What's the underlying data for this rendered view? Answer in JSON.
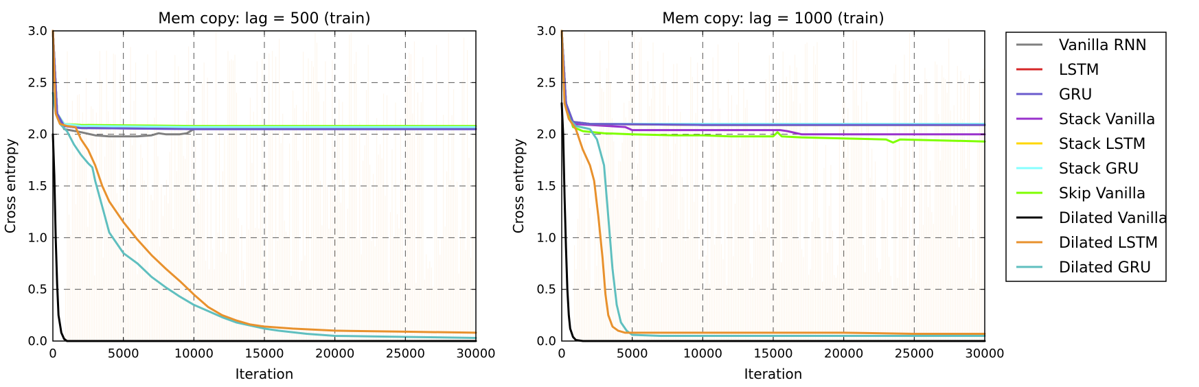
{
  "chart_data": [
    {
      "type": "line",
      "title": "Mem copy: lag = 500 (train)",
      "xlabel": "Iteration",
      "ylabel": "Cross entropy",
      "xlim": [
        0,
        30000
      ],
      "ylim": [
        0.0,
        3.0
      ],
      "xticks": [
        0,
        5000,
        10000,
        15000,
        20000,
        25000,
        30000
      ],
      "yticks": [
        0.0,
        0.5,
        1.0,
        1.5,
        2.0,
        2.5,
        3.0
      ],
      "xtick_labels": [
        "0",
        "5000",
        "10000",
        "15000",
        "20000",
        "25000",
        "30000"
      ],
      "ytick_labels": [
        "0.0",
        "0.5",
        "1.0",
        "1.5",
        "2.0",
        "2.5",
        "3.0"
      ],
      "grid": true,
      "series": [
        {
          "name": "Vanilla RNN",
          "x": [
            0,
            300,
            800,
            2000,
            3000,
            4000,
            5000,
            6000,
            7000,
            7500,
            8000,
            9000,
            9500,
            10000,
            10500,
            11000,
            12000,
            15000,
            20000,
            25000,
            30000
          ],
          "y": [
            3.0,
            2.2,
            2.05,
            2.02,
            1.99,
            1.98,
            1.98,
            1.98,
            1.99,
            2.01,
            2.0,
            2.0,
            2.01,
            2.05,
            2.05,
            2.05,
            2.05,
            2.05,
            2.05,
            2.05,
            2.05
          ]
        },
        {
          "name": "LSTM",
          "x": [
            0,
            300,
            800,
            2000,
            10000,
            20000,
            30000
          ],
          "y": [
            3.0,
            2.2,
            2.1,
            2.07,
            2.07,
            2.07,
            2.07
          ]
        },
        {
          "name": "GRU",
          "x": [
            0,
            300,
            800,
            2000,
            10000,
            20000,
            30000
          ],
          "y": [
            3.0,
            2.2,
            2.08,
            2.06,
            2.05,
            2.05,
            2.05
          ]
        },
        {
          "name": "Stack Vanilla",
          "x": [
            0,
            300,
            800,
            2000,
            10000,
            20000,
            30000
          ],
          "y": [
            3.0,
            2.2,
            2.08,
            2.06,
            2.05,
            2.05,
            2.05
          ]
        },
        {
          "name": "Stack LSTM",
          "x": [
            0,
            300,
            800,
            2000,
            10000,
            20000,
            30000
          ],
          "y": [
            3.0,
            2.2,
            2.1,
            2.08,
            2.07,
            2.07,
            2.07
          ]
        },
        {
          "name": "Stack GRU",
          "x": [
            0,
            300,
            800,
            2000,
            10000,
            20000,
            30000
          ],
          "y": [
            3.0,
            2.2,
            2.1,
            2.08,
            2.07,
            2.07,
            2.07
          ]
        },
        {
          "name": "Skip Vanilla",
          "x": [
            0,
            300,
            800,
            2000,
            10000,
            20000,
            30000
          ],
          "y": [
            3.0,
            2.2,
            2.1,
            2.09,
            2.08,
            2.08,
            2.08
          ]
        },
        {
          "name": "Dilated Vanilla",
          "x": [
            0,
            100,
            200,
            300,
            400,
            600,
            800,
            1000,
            1500,
            30000
          ],
          "y": [
            2.0,
            1.6,
            1.0,
            0.55,
            0.25,
            0.08,
            0.02,
            0.0,
            0.0,
            0.0
          ]
        },
        {
          "name": "Dilated LSTM",
          "x": [
            0,
            200,
            500,
            1000,
            1600,
            2000,
            2500,
            3000,
            3500,
            4000,
            5000,
            6000,
            7000,
            8000,
            9000,
            10000,
            11000,
            12000,
            13000,
            14000,
            15000,
            17000,
            20000,
            25000,
            30000
          ],
          "y": [
            3.0,
            2.2,
            2.1,
            2.08,
            2.07,
            1.95,
            1.85,
            1.7,
            1.5,
            1.35,
            1.15,
            0.98,
            0.83,
            0.7,
            0.58,
            0.45,
            0.33,
            0.25,
            0.2,
            0.16,
            0.14,
            0.12,
            0.1,
            0.09,
            0.08
          ]
        },
        {
          "name": "Dilated GRU",
          "x": [
            0,
            200,
            500,
            1000,
            1500,
            2000,
            2500,
            2800,
            3000,
            3500,
            4000,
            5000,
            6000,
            7000,
            8000,
            9000,
            10000,
            11000,
            12000,
            13000,
            14000,
            15000,
            16000,
            18000,
            20000,
            25000,
            30000
          ],
          "y": [
            2.4,
            2.2,
            2.1,
            2.03,
            1.9,
            1.8,
            1.72,
            1.68,
            1.55,
            1.3,
            1.05,
            0.85,
            0.75,
            0.62,
            0.52,
            0.43,
            0.35,
            0.29,
            0.23,
            0.18,
            0.15,
            0.12,
            0.1,
            0.07,
            0.05,
            0.04,
            0.03
          ]
        }
      ]
    },
    {
      "type": "line",
      "title": "Mem copy: lag = 1000 (train)",
      "xlabel": "Iteration",
      "ylabel": "Cross entropy",
      "xlim": [
        0,
        30000
      ],
      "ylim": [
        0.0,
        3.0
      ],
      "xticks": [
        0,
        5000,
        10000,
        15000,
        20000,
        25000,
        30000
      ],
      "yticks": [
        0.0,
        0.5,
        1.0,
        1.5,
        2.0,
        2.5,
        3.0
      ],
      "xtick_labels": [
        "0",
        "5000",
        "10000",
        "15000",
        "20000",
        "25000",
        "30000"
      ],
      "ytick_labels": [
        "0.0",
        "0.5",
        "1.0",
        "1.5",
        "2.0",
        "2.5",
        "3.0"
      ],
      "grid": true,
      "series": [
        {
          "name": "Vanilla RNN",
          "x": [
            0,
            300,
            800,
            2000,
            10000,
            20000,
            30000
          ],
          "y": [
            3.0,
            2.3,
            2.12,
            2.1,
            2.1,
            2.1,
            2.1
          ]
        },
        {
          "name": "LSTM",
          "x": [
            0,
            300,
            800,
            2000,
            10000,
            20000,
            30000
          ],
          "y": [
            3.0,
            2.3,
            2.12,
            2.1,
            2.09,
            2.09,
            2.09
          ]
        },
        {
          "name": "GRU",
          "x": [
            0,
            300,
            800,
            2000,
            10000,
            20000,
            30000
          ],
          "y": [
            3.0,
            2.3,
            2.12,
            2.1,
            2.09,
            2.09,
            2.09
          ]
        },
        {
          "name": "Stack Vanilla",
          "x": [
            0,
            300,
            800,
            4500,
            5000,
            10000,
            15000,
            15500,
            16000,
            17000,
            20000,
            30000
          ],
          "y": [
            3.0,
            2.3,
            2.1,
            2.07,
            2.04,
            2.04,
            2.04,
            2.04,
            2.03,
            2.0,
            2.0,
            2.0
          ]
        },
        {
          "name": "Stack LSTM",
          "x": [
            0,
            300,
            800,
            2000,
            10000,
            20000,
            30000
          ],
          "y": [
            3.0,
            2.3,
            2.12,
            2.1,
            2.09,
            2.09,
            2.09
          ]
        },
        {
          "name": "Stack GRU",
          "x": [
            0,
            300,
            800,
            2000,
            10000,
            20000,
            30000
          ],
          "y": [
            3.0,
            2.3,
            2.12,
            2.1,
            2.1,
            2.1,
            2.1
          ]
        },
        {
          "name": "Skip Vanilla",
          "x": [
            0,
            300,
            800,
            1500,
            3000,
            5000,
            8000,
            10000,
            12000,
            15000,
            15300,
            15600,
            17000,
            20000,
            23000,
            23500,
            24000,
            27000,
            30000
          ],
          "y": [
            3.0,
            2.3,
            2.07,
            2.03,
            2.01,
            2.0,
            1.99,
            1.99,
            1.98,
            1.98,
            2.02,
            1.98,
            1.97,
            1.96,
            1.95,
            1.92,
            1.95,
            1.94,
            1.93
          ]
        },
        {
          "name": "Dilated Vanilla",
          "x": [
            0,
            100,
            200,
            300,
            400,
            500,
            600,
            800,
            1000,
            1500,
            30000
          ],
          "y": [
            2.3,
            2.0,
            1.4,
            0.9,
            0.5,
            0.25,
            0.12,
            0.04,
            0.01,
            0.0,
            0.0
          ]
        },
        {
          "name": "Dilated LSTM",
          "x": [
            0,
            200,
            500,
            1000,
            1500,
            2000,
            2300,
            2600,
            2900,
            3100,
            3300,
            3600,
            4000,
            4500,
            5000,
            7000,
            10000,
            15000,
            20000,
            25000,
            30000
          ],
          "y": [
            3.0,
            2.3,
            2.15,
            2.05,
            1.85,
            1.7,
            1.55,
            1.2,
            0.8,
            0.45,
            0.25,
            0.14,
            0.1,
            0.08,
            0.08,
            0.08,
            0.08,
            0.08,
            0.08,
            0.07,
            0.07
          ]
        },
        {
          "name": "Dilated GRU",
          "x": [
            0,
            200,
            500,
            1000,
            2000,
            2500,
            3000,
            3300,
            3600,
            3900,
            4200,
            4600,
            5000,
            7000,
            10000,
            15000,
            20000,
            25000,
            30000
          ],
          "y": [
            3.0,
            2.3,
            2.15,
            2.08,
            2.05,
            1.95,
            1.7,
            1.2,
            0.7,
            0.35,
            0.18,
            0.1,
            0.06,
            0.05,
            0.05,
            0.05,
            0.05,
            0.05,
            0.05
          ]
        }
      ]
    }
  ],
  "legend": {
    "placement": "right",
    "entries": [
      {
        "name": "Vanilla RNN",
        "color": "#7f7f7f"
      },
      {
        "name": "LSTM",
        "color": "#d62728"
      },
      {
        "name": "GRU",
        "color": "#6a5acd"
      },
      {
        "name": "Stack Vanilla",
        "color": "#9932cc"
      },
      {
        "name": "Stack LSTM",
        "color": "#ffd700"
      },
      {
        "name": "Stack GRU",
        "color": "#87ffff"
      },
      {
        "name": "Skip Vanilla",
        "color": "#7fff00"
      },
      {
        "name": "Dilated Vanilla",
        "color": "#000000"
      },
      {
        "name": "Dilated LSTM",
        "color": "#e8912d"
      },
      {
        "name": "Dilated GRU",
        "color": "#5fbfbf"
      }
    ]
  }
}
